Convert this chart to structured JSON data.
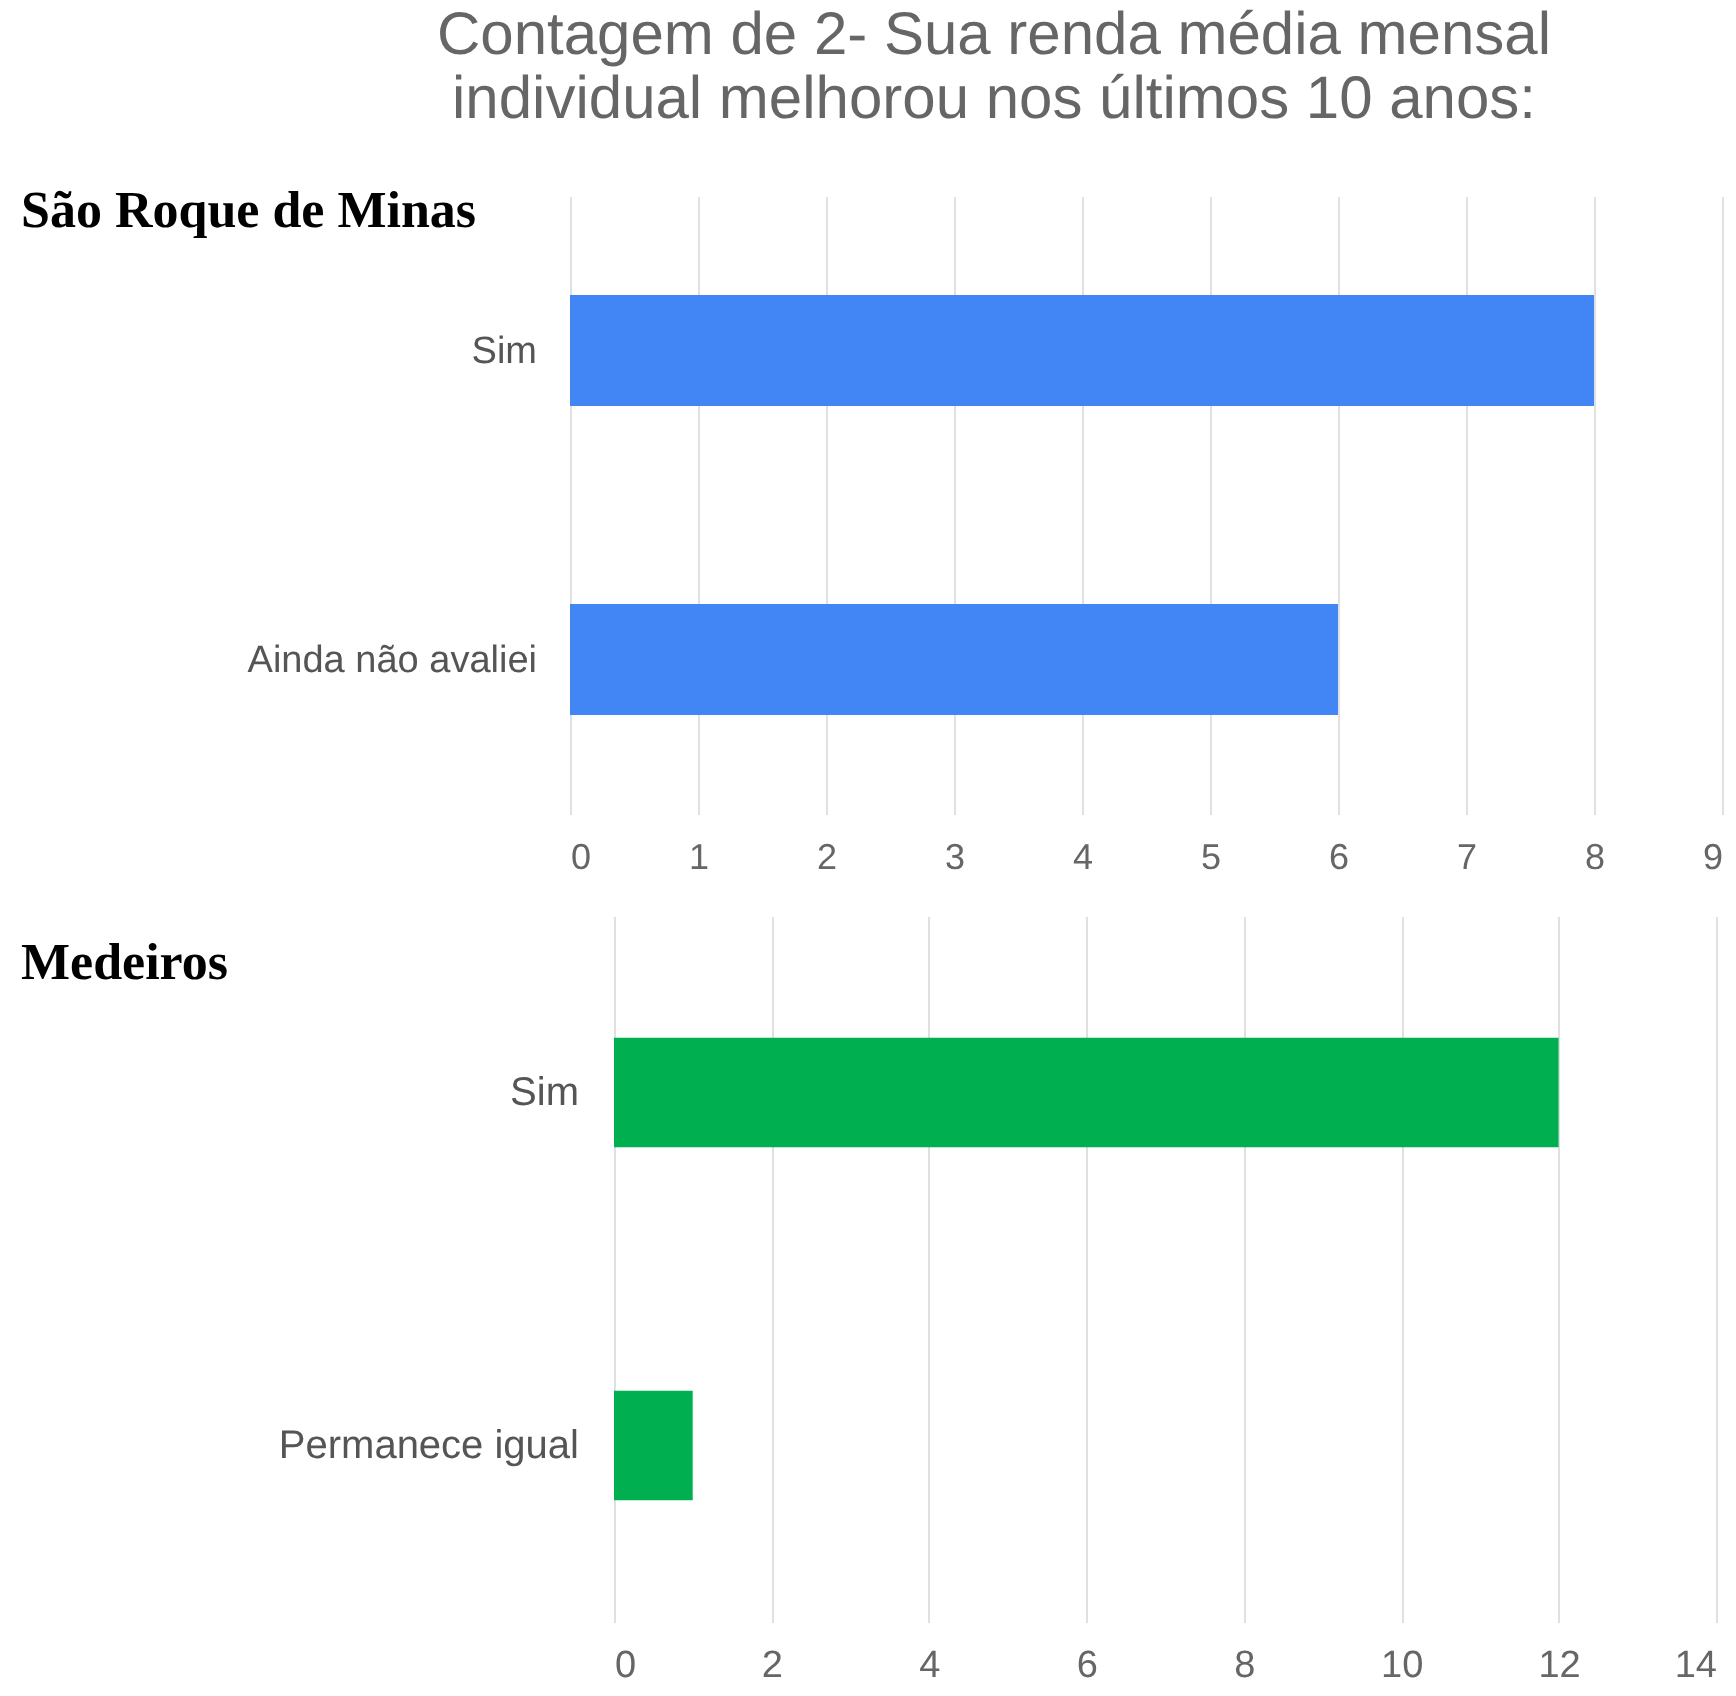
{
  "chart_data": [
    {
      "type": "bar",
      "orientation": "horizontal",
      "title": "Contagem de 2- Sua renda média mensal individual melhorou nos últimos 10 anos:",
      "subtitle": "São Roque de Minas",
      "categories": [
        "Sim",
        "Ainda não avaliei"
      ],
      "values": [
        8,
        6
      ],
      "color": "#4285f4",
      "xlim": [
        0,
        9
      ],
      "xticks": [
        0,
        1,
        2,
        3,
        4,
        5,
        6,
        7,
        8,
        9
      ],
      "grid": "x"
    },
    {
      "type": "bar",
      "orientation": "horizontal",
      "title": "Medeiros",
      "categories": [
        "Sim",
        "Permanece igual"
      ],
      "values": [
        12,
        1
      ],
      "color": "#00b050",
      "xlim": [
        0,
        14
      ],
      "xticks": [
        0,
        2,
        4,
        6,
        8,
        10,
        12,
        14
      ],
      "grid": "x"
    }
  ]
}
